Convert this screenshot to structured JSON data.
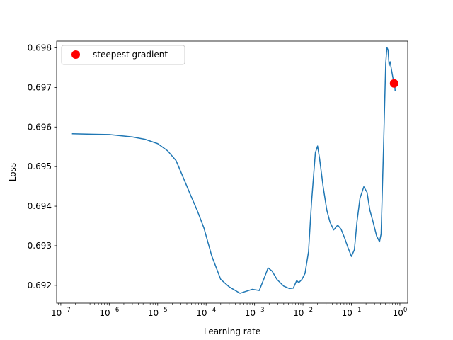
{
  "chart_data": {
    "type": "line",
    "xlabel": "Learning rate",
    "ylabel": "Loss",
    "xscale": "log",
    "xlim": [
      8.2e-08,
      1.45
    ],
    "ylim": [
      0.69155,
      0.69817
    ],
    "x_ticks": [
      {
        "value": 1e-07,
        "base": "10",
        "exp": "−7"
      },
      {
        "value": 1e-06,
        "base": "10",
        "exp": "−6"
      },
      {
        "value": 1e-05,
        "base": "10",
        "exp": "−5"
      },
      {
        "value": 0.0001,
        "base": "10",
        "exp": "−4"
      },
      {
        "value": 0.001,
        "base": "10",
        "exp": "−3"
      },
      {
        "value": 0.01,
        "base": "10",
        "exp": "−2"
      },
      {
        "value": 0.1,
        "base": "10",
        "exp": "−1"
      },
      {
        "value": 1,
        "base": "10",
        "exp": "0"
      }
    ],
    "y_ticks": [
      {
        "value": 0.692,
        "label": "0.692"
      },
      {
        "value": 0.693,
        "label": "0.693"
      },
      {
        "value": 0.694,
        "label": "0.694"
      },
      {
        "value": 0.695,
        "label": "0.695"
      },
      {
        "value": 0.696,
        "label": "0.696"
      },
      {
        "value": 0.697,
        "label": "0.697"
      },
      {
        "value": 0.698,
        "label": "0.698"
      }
    ],
    "grid": false,
    "legend_placement": "top-left",
    "series": [
      {
        "color": "#1f77b4",
        "points": [
          [
            1.7e-07,
            0.69583
          ],
          [
            1e-06,
            0.69581
          ],
          [
            3e-06,
            0.69575
          ],
          [
            5.5e-06,
            0.69569
          ],
          [
            1e-05,
            0.69558
          ],
          [
            1.6e-05,
            0.6954
          ],
          [
            2.4e-05,
            0.69515
          ],
          [
            3.3e-05,
            0.69475
          ],
          [
            4.7e-05,
            0.6943
          ],
          [
            6.5e-05,
            0.6939
          ],
          [
            9e-05,
            0.69345
          ],
          [
            0.00013,
            0.69275
          ],
          [
            0.0002,
            0.69215
          ],
          [
            0.0003,
            0.69196
          ],
          [
            0.0005,
            0.6918
          ],
          [
            0.0009,
            0.6919
          ],
          [
            0.00125,
            0.69187
          ],
          [
            0.0016,
            0.6922
          ],
          [
            0.0019,
            0.69244
          ],
          [
            0.0023,
            0.69236
          ],
          [
            0.0029,
            0.69215
          ],
          [
            0.004,
            0.69198
          ],
          [
            0.0052,
            0.69192
          ],
          [
            0.0063,
            0.69193
          ],
          [
            0.0074,
            0.69212
          ],
          [
            0.0082,
            0.69207
          ],
          [
            0.0095,
            0.69215
          ],
          [
            0.011,
            0.6923
          ],
          [
            0.013,
            0.69285
          ],
          [
            0.015,
            0.6941
          ],
          [
            0.018,
            0.69535
          ],
          [
            0.02,
            0.69552
          ],
          [
            0.022,
            0.6952
          ],
          [
            0.026,
            0.6945
          ],
          [
            0.031,
            0.6939
          ],
          [
            0.036,
            0.6936
          ],
          [
            0.043,
            0.6934
          ],
          [
            0.052,
            0.69352
          ],
          [
            0.061,
            0.69342
          ],
          [
            0.072,
            0.6932
          ],
          [
            0.085,
            0.69295
          ],
          [
            0.1,
            0.69273
          ],
          [
            0.115,
            0.6929
          ],
          [
            0.13,
            0.6936
          ],
          [
            0.15,
            0.6942
          ],
          [
            0.18,
            0.69449
          ],
          [
            0.21,
            0.69435
          ],
          [
            0.24,
            0.6939
          ],
          [
            0.28,
            0.6936
          ],
          [
            0.33,
            0.69325
          ],
          [
            0.38,
            0.6931
          ],
          [
            0.41,
            0.6933
          ],
          [
            0.46,
            0.6955
          ],
          [
            0.51,
            0.6976
          ],
          [
            0.54,
            0.69801
          ],
          [
            0.57,
            0.69795
          ],
          [
            0.6,
            0.69755
          ],
          [
            0.63,
            0.69765
          ],
          [
            0.67,
            0.69745
          ],
          [
            0.73,
            0.6972
          ],
          [
            0.79,
            0.697
          ],
          [
            0.8,
            0.6969
          ]
        ]
      }
    ],
    "marker": {
      "name": "steepest gradient",
      "x": 0.76,
      "y": 0.6971,
      "color": "#ff0000"
    }
  }
}
